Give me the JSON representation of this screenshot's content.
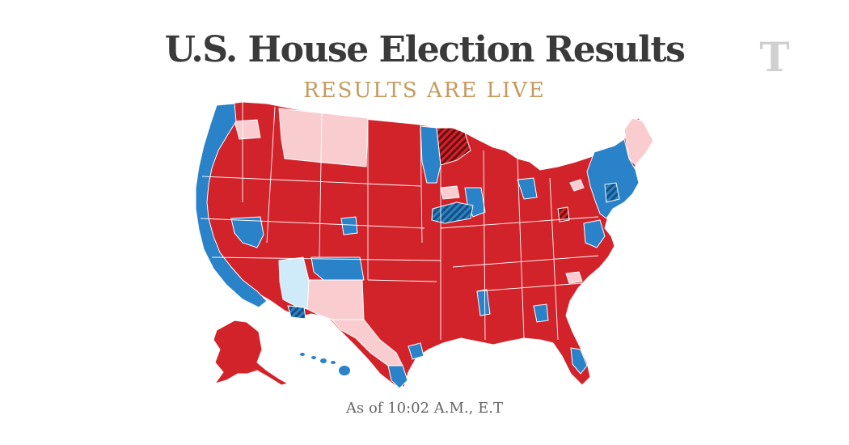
{
  "header": {
    "title": "U.S. House Election Results",
    "subtitle": "RESULTS ARE LIVE"
  },
  "logo": {
    "icon": "nyt-t-logo-icon",
    "glyph": "T"
  },
  "footer": {
    "timestamp": "As of 10:02 A.M., E.T"
  },
  "colors": {
    "republican": "#d2232a",
    "republican_leaning": "#f9cdcf",
    "democrat": "#2a82c8",
    "democrat_leaning": "#cfeaf8",
    "flip_democrat": "#17507f",
    "flip_republican": "#6d0f12",
    "border": "#ffffff",
    "logo": "#d0d0d0"
  }
}
